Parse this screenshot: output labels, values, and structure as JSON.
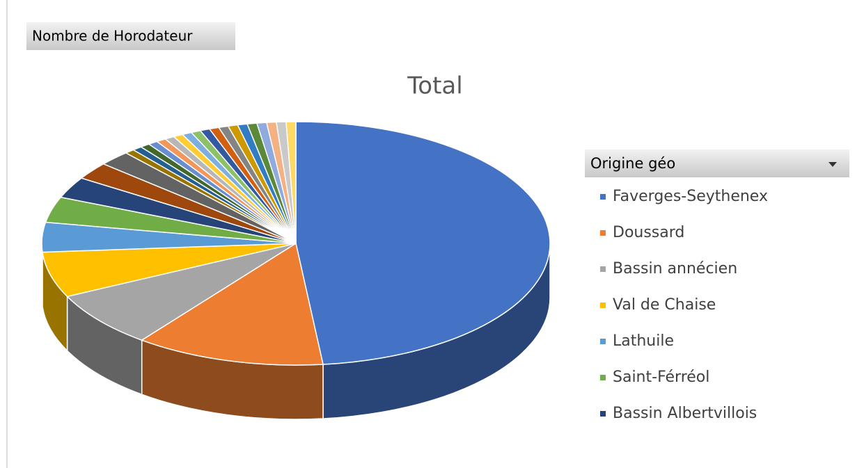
{
  "chart_data": {
    "type": "pie",
    "title": "Total",
    "field_button": "Nombre de Horodateur",
    "legend_title": "Origine géo",
    "categories": [
      "Faverges-Seythenex",
      "Doussard",
      "Bassin annécien",
      "Val de Chaise",
      "Lathuile",
      "Saint-Férréol",
      "Bassin Albertvillois",
      null,
      null,
      null,
      null,
      null,
      null,
      null,
      null,
      null,
      null,
      null,
      null,
      null,
      null,
      null,
      null,
      null,
      null,
      null,
      null,
      null
    ],
    "values": [
      48,
      12,
      7.4,
      6,
      3.9,
      3.4,
      2.8,
      2.3,
      2,
      0.61,
      0.61,
      0.61,
      0.61,
      0.61,
      0.61,
      0.61,
      0.61,
      0.61,
      0.61,
      0.61,
      0.61,
      0.61,
      0.61,
      0.61,
      0.61,
      0.61,
      0.61,
      0.61
    ],
    "colors": [
      "#4472c4",
      "#ed7d31",
      "#a5a5a5",
      "#ffc000",
      "#5b9bd5",
      "#70ad47",
      "#264478",
      "#9e480e",
      "#636363",
      "#997300",
      "#255e91",
      "#43682b",
      "#698ed0",
      "#f1975a",
      "#b7b7b7",
      "#ffcd33",
      "#7cafdd",
      "#8cc168",
      "#335aa1",
      "#d26012",
      "#848484",
      "#cc9a00",
      "#327dc2",
      "#5a8a39",
      "#8faadc",
      "#f4b183",
      "#c9c9c9",
      "#ffd966"
    ]
  }
}
